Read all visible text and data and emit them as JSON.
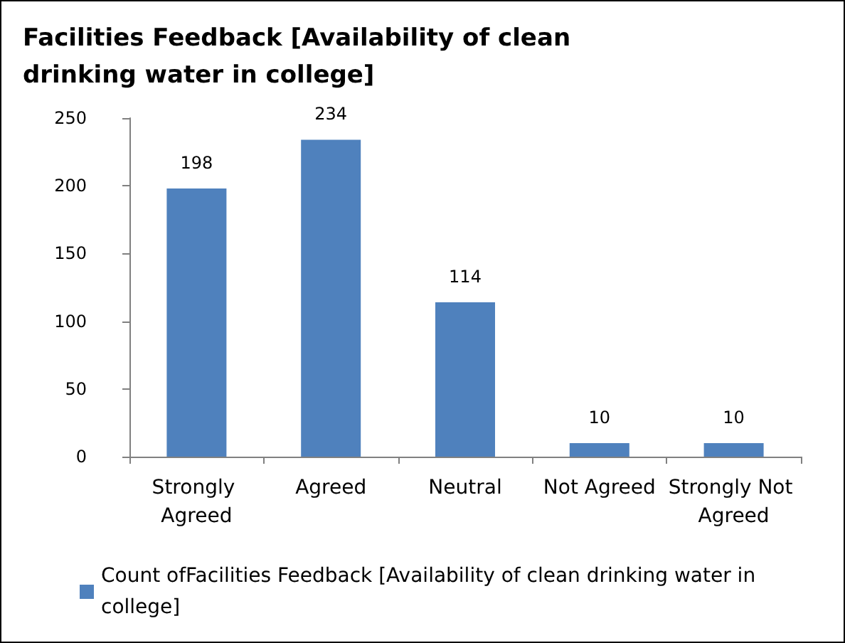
{
  "chart_data": {
    "type": "bar",
    "title": "Facilities Feedback [Availability of clean drinking water in college]",
    "categories": [
      "Strongly Agreed",
      "Agreed",
      "Neutral",
      "Not Agreed",
      "Strongly Not Agreed"
    ],
    "series": [
      {
        "name": "Count ofFacilities Feedback [Availability of clean drinking water in college]",
        "color": "#4f81bd",
        "values": [
          198,
          234,
          114,
          10,
          10
        ]
      }
    ],
    "ylim": [
      0,
      250
    ],
    "yticks": [
      0,
      50,
      100,
      150,
      200,
      250
    ],
    "grid": false,
    "legend": "bottom",
    "data_labels": true
  }
}
